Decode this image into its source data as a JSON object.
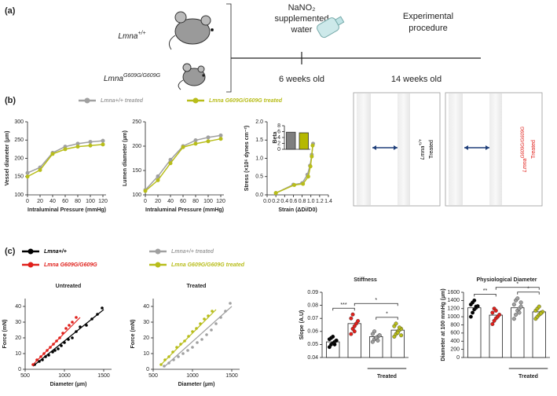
{
  "panel_labels": [
    "(a)",
    "(b)",
    "(c)"
  ],
  "timeline": {
    "genotypes": [
      {
        "base": "Lmna",
        "sup": "+/+"
      },
      {
        "base": "Lmna",
        "sup": "G609G/G609G"
      }
    ],
    "treatment": [
      "NaNO₂",
      "supplemented",
      "water"
    ],
    "endpoint": [
      "Experimental",
      "procedure"
    ],
    "start": "6 weeks old",
    "end": "14 weeks old"
  },
  "panel_b_legend": [
    {
      "name": "Lmna+/+ treated",
      "color": "#a0a0a0"
    },
    {
      "name": "Lmna G609G/G609G treated",
      "color": "#b8bd1a"
    }
  ],
  "images": [
    {
      "genotype": {
        "base": "Lmna",
        "sup": "+/+"
      },
      "label": "Treated",
      "color": "#000000"
    },
    {
      "genotype": {
        "base": "Lmna",
        "sup": "G609G/G609G"
      },
      "label": "Treated",
      "color": "#e0201b"
    }
  ],
  "panel_c_legend": [
    {
      "name": "Lmna+/+",
      "color": "#000000"
    },
    {
      "name": "Lmna G609G/G609G",
      "color": "#e0201b"
    },
    {
      "name": "Lmna+/+ treated",
      "color": "#a0a0a0"
    },
    {
      "name": "Lmna G609G/G609G treated",
      "color": "#b8bd1a"
    }
  ],
  "chart_data": [
    {
      "type": "line",
      "xlabel": "Intraluminal Pressure (mmHg)",
      "ylabel": "Vessel diameter (µm)",
      "x": [
        0,
        20,
        40,
        60,
        80,
        100,
        120
      ],
      "xlim": [
        0,
        125
      ],
      "xticks": [
        0,
        20,
        40,
        60,
        80,
        100,
        120
      ],
      "ylim": [
        100,
        300
      ],
      "yticks": [
        100,
        150,
        200,
        250,
        300
      ],
      "series": [
        {
          "color": "#a0a0a0",
          "values": [
            160,
            175,
            215,
            232,
            240,
            245,
            248
          ]
        },
        {
          "color": "#b8bd1a",
          "values": [
            150,
            168,
            212,
            225,
            232,
            235,
            238
          ]
        }
      ]
    },
    {
      "type": "line",
      "xlabel": "Intraluminal Pressure (mmHg)",
      "ylabel": "Lumen diameter (µm)",
      "x": [
        0,
        20,
        40,
        60,
        80,
        100,
        120
      ],
      "xlim": [
        0,
        125
      ],
      "xticks": [
        0,
        20,
        40,
        60,
        80,
        100,
        120
      ],
      "ylim": [
        100,
        250
      ],
      "yticks": [
        100,
        150,
        200,
        250
      ],
      "series": [
        {
          "color": "#a0a0a0",
          "values": [
            110,
            138,
            172,
            200,
            212,
            218,
            222
          ]
        },
        {
          "color": "#b8bd1a",
          "values": [
            108,
            130,
            165,
            198,
            205,
            210,
            215
          ]
        }
      ]
    },
    {
      "type": "line",
      "xlabel": "Strain (ΔDi/D0)",
      "ylabel": "Stress (×10⁶ dynes cm⁻²)",
      "xlim": [
        0,
        1.4
      ],
      "xticks": [
        {
          "value": 0,
          "label": "0.0"
        },
        0.2,
        0.4,
        0.6,
        0.8,
        {
          "value": 1,
          "label": "1.0"
        },
        1.2,
        1.4
      ],
      "ylim": [
        0,
        2
      ],
      "yticks": [
        {
          "value": 0,
          "label": "0.0"
        },
        0.5,
        {
          "value": 1,
          "label": "1.0"
        },
        1.5,
        {
          "value": 2,
          "label": "2.0"
        }
      ],
      "series": [
        {
          "color": "#a0a0a0",
          "x": [
            0.2,
            0.6,
            0.8,
            0.92,
            0.98,
            1.02,
            1.05
          ],
          "values": [
            0.05,
            0.28,
            0.32,
            0.55,
            0.8,
            1.1,
            1.4
          ]
        },
        {
          "color": "#b8bd1a",
          "x": [
            0.2,
            0.62,
            0.82,
            0.94,
            0.99,
            1.02,
            1.04
          ],
          "values": [
            0.05,
            0.27,
            0.3,
            0.5,
            0.78,
            1.05,
            1.35
          ]
        }
      ]
    },
    {
      "type": "bar",
      "ylabel": "Beta",
      "categories": [
        null,
        null
      ],
      "values": [
        5.8,
        5.6
      ],
      "colors": [
        "#7f7f7f",
        "#b5b800"
      ],
      "ylim": [
        0,
        8
      ],
      "yticks": [
        0,
        2,
        4,
        6,
        8
      ]
    },
    {
      "type": "scatter",
      "title": "Untreated",
      "xlabel": "Diameter (µm)",
      "ylabel": "Force (mN)",
      "xlim": [
        500,
        1600
      ],
      "xticks": [
        500,
        1000,
        1500
      ],
      "ylim": [
        0,
        45
      ],
      "yticks": [
        0,
        10,
        20,
        30,
        40
      ],
      "series": [
        {
          "color": "#000000",
          "x": [
            620,
            680,
            720,
            760,
            800,
            850,
            880,
            920,
            960,
            1000,
            1050,
            1100,
            1150,
            1200,
            1280,
            1350,
            1420,
            1480
          ],
          "values": [
            3,
            5,
            6,
            8,
            9,
            11,
            12,
            13,
            15,
            17,
            19,
            20,
            24,
            27,
            28,
            32,
            35,
            39
          ],
          "fit_x": [
            600,
            1500
          ],
          "fit_y": [
            2,
            38
          ]
        },
        {
          "color": "#e0201b",
          "x": [
            600,
            650,
            700,
            740,
            780,
            820,
            860,
            900,
            940,
            980,
            1020,
            1060,
            1100,
            1150
          ],
          "values": [
            3,
            6,
            8,
            10,
            12,
            14,
            16,
            18,
            20,
            23,
            26,
            28,
            30,
            33
          ],
          "fit_x": [
            600,
            1200
          ],
          "fit_y": [
            3,
            33
          ]
        }
      ]
    },
    {
      "type": "scatter",
      "title": "Treated",
      "xlabel": "Diameter (µm)",
      "ylabel": "Force (mN)",
      "xlim": [
        500,
        1600
      ],
      "xticks": [
        500,
        1000,
        1500
      ],
      "ylim": [
        0,
        45
      ],
      "yticks": [
        0,
        10,
        20,
        30,
        40
      ],
      "series": [
        {
          "color": "#a0a0a0",
          "x": [
            640,
            700,
            760,
            820,
            880,
            940,
            1000,
            1060,
            1120,
            1180,
            1240,
            1300,
            1360,
            1420,
            1480
          ],
          "values": [
            2,
            4,
            6,
            8,
            10,
            12,
            14,
            17,
            19,
            22,
            25,
            29,
            33,
            37,
            42
          ],
          "fit_x": [
            650,
            1500
          ],
          "fit_y": [
            2,
            40
          ]
        },
        {
          "color": "#b8bd1a",
          "x": [
            600,
            650,
            700,
            750,
            800,
            850,
            900,
            950,
            1000,
            1050,
            1100,
            1150,
            1200,
            1250
          ],
          "values": [
            3,
            6,
            8,
            11,
            14,
            16,
            18,
            21,
            24,
            26,
            29,
            32,
            34,
            37
          ],
          "fit_x": [
            600,
            1300
          ],
          "fit_y": [
            3,
            38
          ]
        }
      ]
    },
    {
      "type": "bar",
      "title": "Stiffness",
      "ylabel": "Slope (A.U)",
      "group_label": "Treated",
      "categories": [
        null,
        null,
        null,
        null
      ],
      "values": [
        0.052,
        0.066,
        0.056,
        0.061
      ],
      "colors": [
        "#000000",
        "#e0201b",
        "#a0a0a0",
        "#b8bd1a"
      ],
      "points": [
        [
          0.048,
          0.05,
          0.051,
          0.052,
          0.053,
          0.054,
          0.055,
          0.056,
          0.05,
          0.053
        ],
        [
          0.058,
          0.062,
          0.064,
          0.066,
          0.068,
          0.07,
          0.073,
          0.06
        ],
        [
          0.052,
          0.054,
          0.055,
          0.056,
          0.057,
          0.058,
          0.06,
          0.055,
          0.053,
          0.057
        ],
        [
          0.056,
          0.058,
          0.06,
          0.061,
          0.062,
          0.064,
          0.066,
          0.059,
          0.063,
          0.057
        ]
      ],
      "significance": [
        "***",
        "*",
        "*"
      ],
      "ylim": [
        0.04,
        0.09
      ],
      "yticks": [
        0.04,
        0.05,
        0.06,
        0.07,
        0.08,
        0.09
      ]
    },
    {
      "type": "bar",
      "title": "Physiological Diameter",
      "ylabel": "Diameter at 100 mmHg (µm)",
      "group_label": "Treated",
      "categories": [
        null,
        null,
        null,
        null
      ],
      "values": [
        1220,
        1040,
        1220,
        1120
      ],
      "colors": [
        "#000000",
        "#e0201b",
        "#a0a0a0",
        "#b8bd1a"
      ],
      "points": [
        [
          1000,
          1100,
          1180,
          1220,
          1260,
          1300,
          1350,
          1400,
          1250
        ],
        [
          820,
          900,
          960,
          1000,
          1050,
          1100,
          1200,
          1150
        ],
        [
          950,
          1050,
          1150,
          1200,
          1250,
          1300,
          1400,
          1450,
          1100,
          1350
        ],
        [
          950,
          1000,
          1050,
          1100,
          1120,
          1150,
          1200,
          1250,
          1080
        ]
      ],
      "significance": [
        "**",
        "*",
        "*"
      ],
      "ylim": [
        0,
        1600
      ],
      "yticks": [
        0,
        200,
        400,
        600,
        800,
        1000,
        1200,
        1400,
        1600
      ]
    }
  ]
}
